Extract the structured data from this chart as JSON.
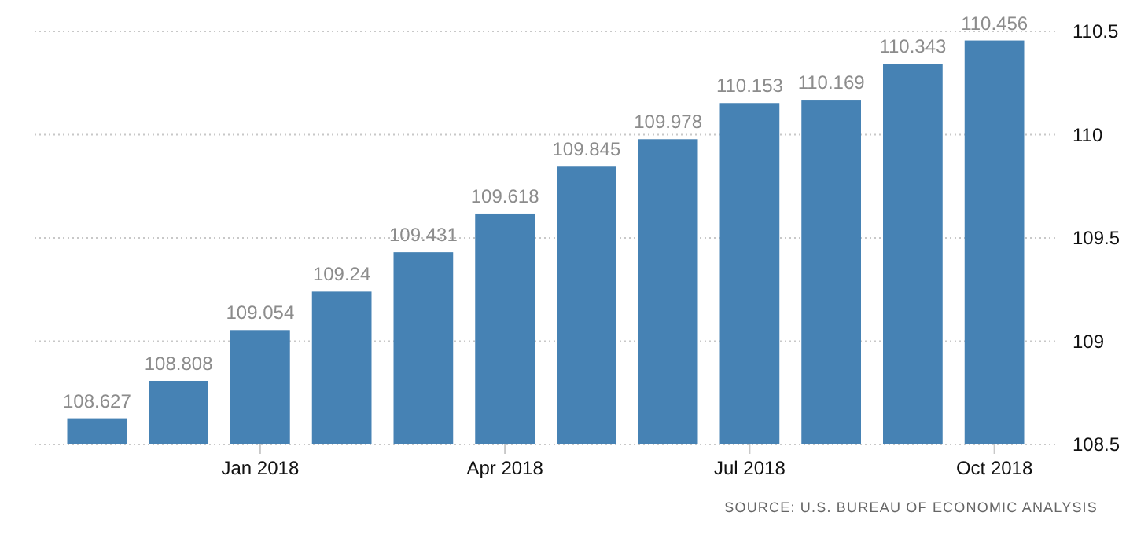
{
  "chart_data": {
    "type": "bar",
    "categories": [
      null,
      null,
      "Jan 2018",
      null,
      null,
      "Apr 2018",
      null,
      null,
      "Jul 2018",
      null,
      null,
      "Oct 2018"
    ],
    "values": [
      108.627,
      108.808,
      109.054,
      109.24,
      109.431,
      109.618,
      109.845,
      109.978,
      110.153,
      110.169,
      110.343,
      110.456
    ],
    "color": "#4682b4",
    "ylim": [
      108.5,
      110.5
    ],
    "yticks": [
      108.5,
      109,
      109.5,
      110,
      110.5
    ],
    "grid": "y",
    "data_labels": true,
    "annotations": [
      "SOURCE: U.S. BUREAU OF ECONOMIC ANALYSIS"
    ]
  }
}
